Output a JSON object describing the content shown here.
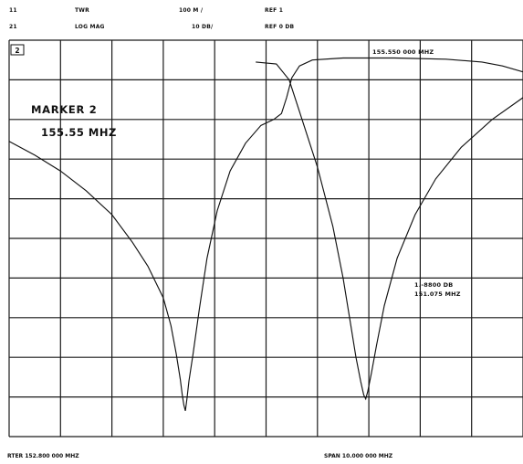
{
  "header": {
    "row1": {
      "channel": "11",
      "param": "TWR",
      "scale": "100 M /",
      "ref": "REF 1"
    },
    "row2": {
      "channel": "21",
      "param": "LOG MAG",
      "scale": "10 DB/",
      "ref": "REF 0 DB"
    }
  },
  "marker_annotation": {
    "title": "MARKER 2",
    "frequency": "155.55 MHZ"
  },
  "marker_box_label": "2",
  "marker_readout_top": "155.550 000 MHZ",
  "marker_readout_right": {
    "value": "1.-8800 DB",
    "frequency": "151.075 MHZ"
  },
  "footer": {
    "start": "RTER 152.800 000 MHZ",
    "span": "SPAN 10.000 000 MHZ"
  },
  "colors": {
    "grid": "#1a1a1a",
    "trace": "#111111",
    "background": "#ffffff"
  },
  "traces": {
    "log_mag": [
      [
        0.0,
        0.255
      ],
      [
        0.05,
        0.29
      ],
      [
        0.1,
        0.33
      ],
      [
        0.15,
        0.38
      ],
      [
        0.2,
        0.44
      ],
      [
        0.24,
        0.51
      ],
      [
        0.27,
        0.57
      ],
      [
        0.3,
        0.65
      ],
      [
        0.315,
        0.72
      ],
      [
        0.325,
        0.79
      ],
      [
        0.333,
        0.855
      ],
      [
        0.337,
        0.895
      ],
      [
        0.34,
        0.92
      ],
      [
        0.343,
        0.935
      ],
      [
        0.346,
        0.905
      ],
      [
        0.35,
        0.86
      ],
      [
        0.358,
        0.79
      ],
      [
        0.37,
        0.68
      ],
      [
        0.385,
        0.55
      ],
      [
        0.405,
        0.43
      ],
      [
        0.43,
        0.33
      ],
      [
        0.46,
        0.26
      ],
      [
        0.49,
        0.215
      ],
      [
        0.515,
        0.2
      ],
      [
        0.53,
        0.185
      ],
      [
        0.54,
        0.145
      ],
      [
        0.55,
        0.095
      ],
      [
        0.565,
        0.065
      ],
      [
        0.59,
        0.05
      ],
      [
        0.65,
        0.045
      ],
      [
        0.75,
        0.045
      ],
      [
        0.85,
        0.048
      ],
      [
        0.92,
        0.055
      ],
      [
        0.96,
        0.065
      ],
      [
        1.0,
        0.08
      ]
    ],
    "marker_trace": [
      [
        0.48,
        0.055
      ],
      [
        0.52,
        0.06
      ],
      [
        0.545,
        0.1
      ],
      [
        0.565,
        0.18
      ],
      [
        0.6,
        0.32
      ],
      [
        0.63,
        0.47
      ],
      [
        0.65,
        0.6
      ],
      [
        0.665,
        0.72
      ],
      [
        0.675,
        0.8
      ],
      [
        0.684,
        0.86
      ],
      [
        0.69,
        0.895
      ],
      [
        0.694,
        0.905
      ],
      [
        0.698,
        0.885
      ],
      [
        0.705,
        0.84
      ],
      [
        0.715,
        0.77
      ],
      [
        0.73,
        0.67
      ],
      [
        0.755,
        0.55
      ],
      [
        0.79,
        0.44
      ],
      [
        0.83,
        0.35
      ],
      [
        0.88,
        0.27
      ],
      [
        0.94,
        0.2
      ],
      [
        1.0,
        0.145
      ]
    ]
  }
}
